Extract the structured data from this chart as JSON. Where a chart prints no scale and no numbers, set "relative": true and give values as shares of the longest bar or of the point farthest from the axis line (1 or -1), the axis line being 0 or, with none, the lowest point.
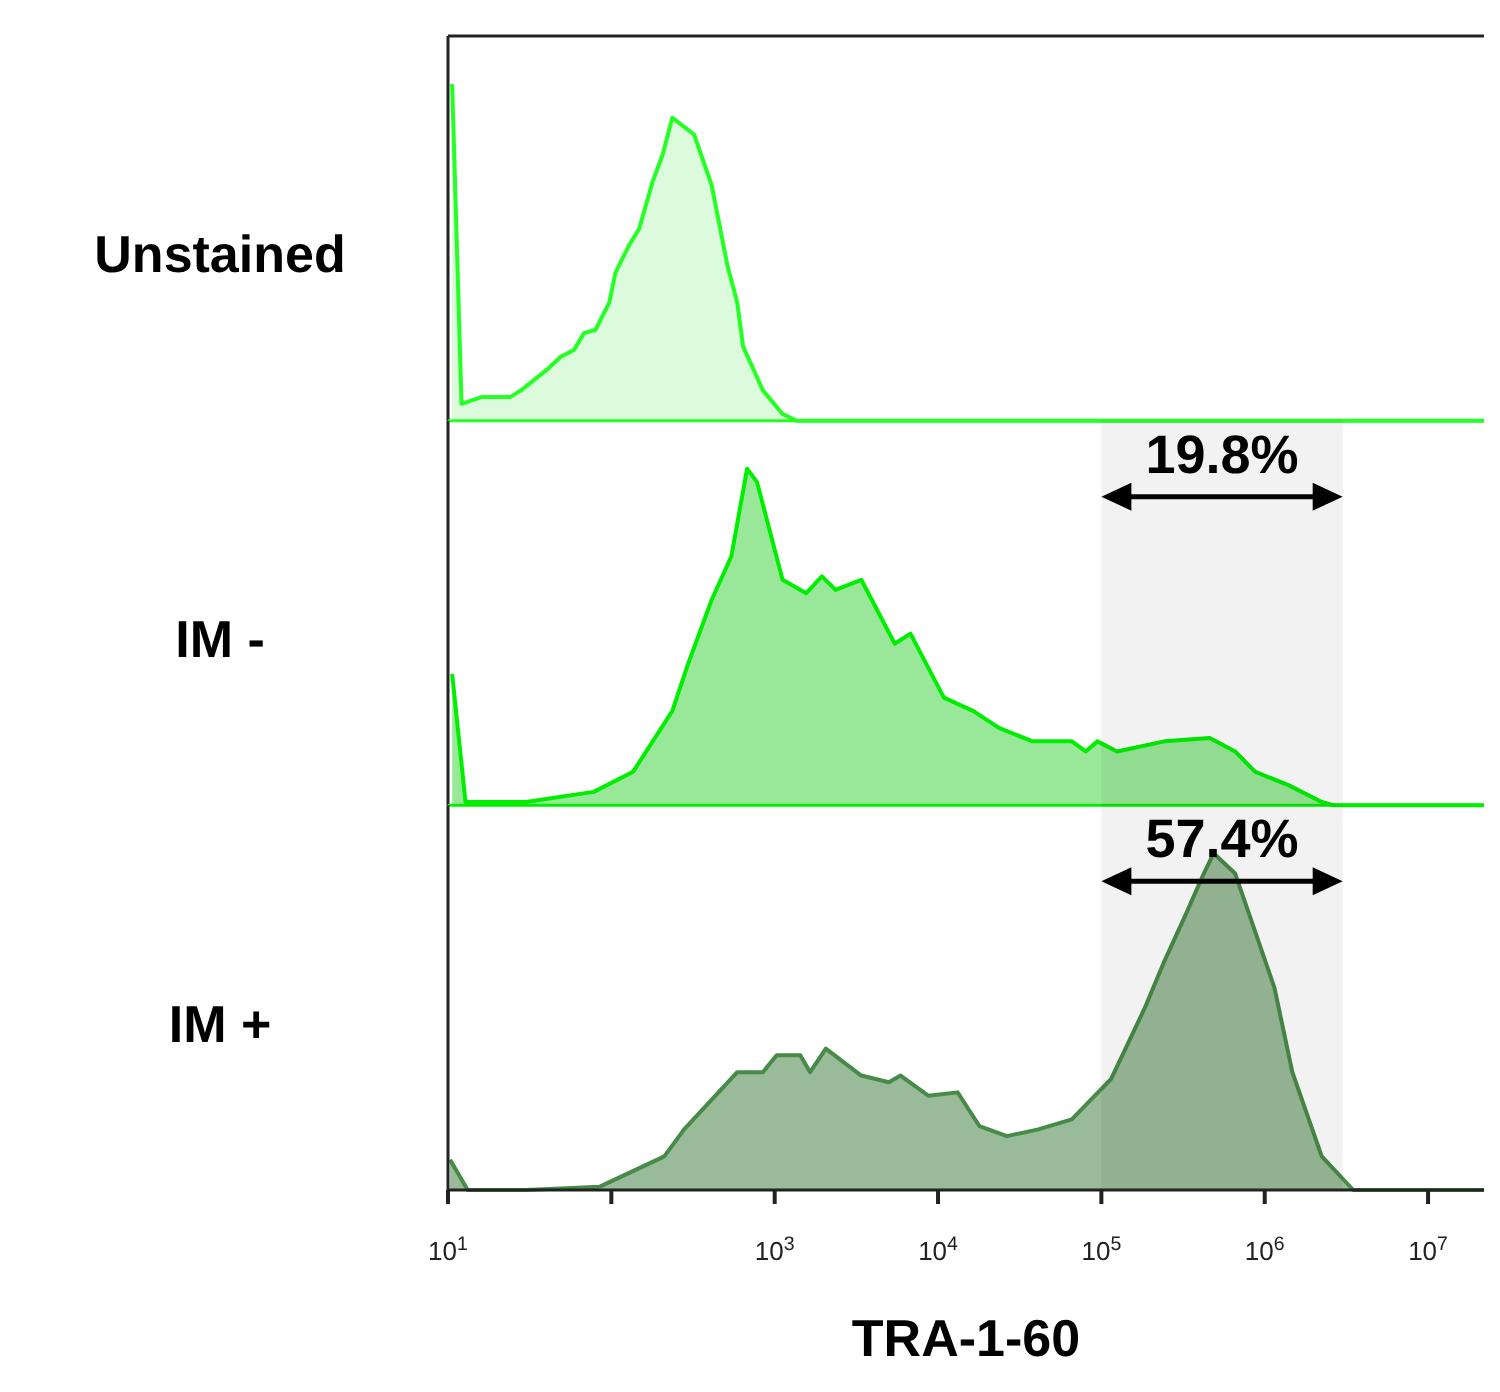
{
  "chart_data": [
    {
      "type": "area",
      "relative": true,
      "ylabel": "Unstained",
      "log": "x",
      "xlim": [
        10,
        22000000
      ],
      "tick_labels": false,
      "series": [
        {
          "color": "#dcfadc",
          "x": [
            10.6,
            12.1,
            16,
            24,
            28,
            40,
            49,
            59,
            68,
            80,
            97,
            106,
            128,
            148,
            179,
            206,
            236,
            321,
            411,
            514,
            590,
            641,
            847,
            1117,
            1358,
            22000000
          ],
          "values": [
            1,
            0.05,
            0.07,
            0.07,
            0.09,
            0.15,
            0.19,
            0.21,
            0.26,
            0.27,
            0.35,
            0.44,
            0.52,
            0.57,
            0.71,
            0.79,
            0.9,
            0.85,
            0.7,
            0.46,
            0.35,
            0.22,
            0.09,
            0.02,
            0,
            0
          ]
        }
      ]
    },
    {
      "type": "area",
      "relative": true,
      "ylabel": "IM -",
      "log": "x",
      "xlim": [
        10,
        22000000
      ],
      "tick_labels": false,
      "bands": [
        {
          "axis": "x",
          "from": 100000,
          "to": 3000000,
          "label": "19.8%",
          "color": "#000000"
        }
      ],
      "series": [
        {
          "color": "#99e899",
          "x": [
            10.6,
            12.8,
            30,
            78,
            136,
            236,
            295,
            411,
            543,
            678,
            780,
            1117,
            1560,
            1945,
            2360,
            3388,
            5433,
            6776,
            10860,
            16480,
            23600,
            37840,
            65920,
            80170,
            94620,
            124700,
            243200,
            460300,
            659200,
            871000,
            1396000,
            2234000,
            2642000,
            22000000
          ],
          "values": [
            0.39,
            0.01,
            0.01,
            0.04,
            0.1,
            0.28,
            0.42,
            0.61,
            0.74,
            1,
            0.96,
            0.67,
            0.63,
            0.68,
            0.64,
            0.67,
            0.48,
            0.51,
            0.32,
            0.28,
            0.23,
            0.19,
            0.19,
            0.16,
            0.19,
            0.16,
            0.19,
            0.2,
            0.16,
            0.1,
            0.06,
            0.01,
            0,
            0
          ]
        }
      ]
    },
    {
      "type": "area",
      "relative": true,
      "ylabel": "IM +",
      "xlabel": "TRA-1-60",
      "log": "x",
      "xlim": [
        10,
        22000000
      ],
      "xticks": [
        {
          "value": 10,
          "label": "10$^{1}$"
        },
        {
          "value": 100,
          "label": null
        },
        {
          "value": 1000,
          "label": "10$^{3}$"
        },
        {
          "value": 10000,
          "label": "10$^{4}$"
        },
        {
          "value": 100000,
          "label": "10$^{5}$"
        },
        {
          "value": 1000000,
          "label": "10$^{6}$"
        },
        {
          "value": 10000000,
          "label": "10$^{7}$"
        }
      ],
      "tick_labels": "x",
      "bands": [
        {
          "axis": "x",
          "from": 100000,
          "to": 3000000,
          "label": "57.4%",
          "color": "#000000"
        }
      ],
      "series": [
        {
          "color": "#99bb99",
          "x": [
            10.3,
            13.2,
            30,
            85,
            211,
            279,
            590,
            847,
            1028,
            1435,
            1648,
            2056,
            3388,
            5000,
            5902,
            8710,
            13180,
            17910,
            26420,
            41110,
            65920,
            114800,
            184100,
            243200,
            329600,
            423600,
            486500,
            659200,
            801700,
            1148000,
            1476000,
            2234000,
            3483000,
            22000000
          ],
          "values": [
            0.09,
            0,
            0,
            0.01,
            0.1,
            0.18,
            0.35,
            0.35,
            0.4,
            0.4,
            0.35,
            0.42,
            0.34,
            0.32,
            0.34,
            0.28,
            0.29,
            0.19,
            0.16,
            0.18,
            0.21,
            0.33,
            0.54,
            0.68,
            0.82,
            0.94,
            1,
            0.94,
            0.82,
            0.6,
            0.35,
            0.1,
            0,
            0
          ]
        }
      ]
    }
  ]
}
